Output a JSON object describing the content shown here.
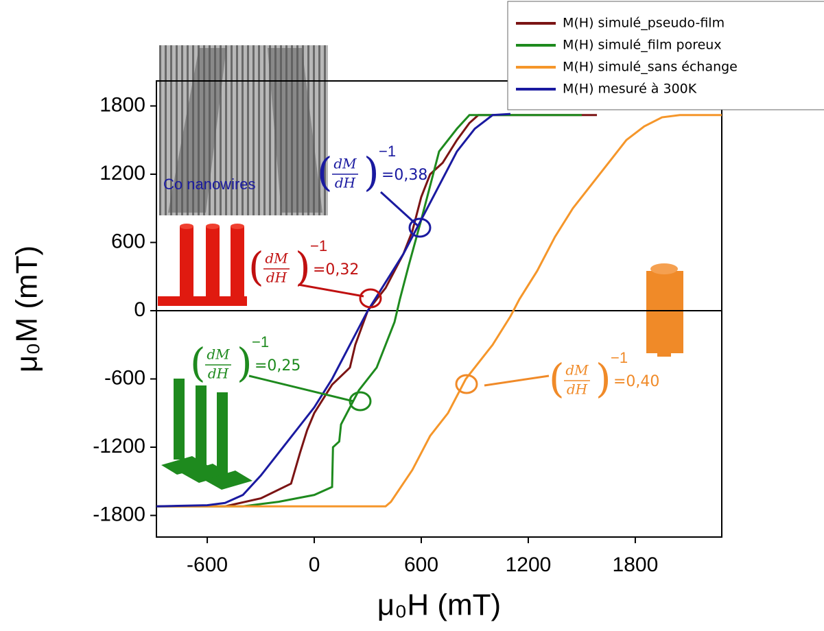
{
  "chart_data": {
    "type": "line",
    "xlabel": "μ₀H (mT)",
    "ylabel": "μ₀M (mT)",
    "xlim": [
      -885,
      2285
    ],
    "ylim": [
      -1990,
      2020
    ],
    "xticks": [
      -600,
      0,
      600,
      1200,
      1800
    ],
    "yticks": [
      -1800,
      -1200,
      -600,
      0,
      600,
      1200,
      1800
    ],
    "inset_caption": "Co nanowires",
    "series": [
      {
        "name": "M(H) simulé_pseudo-film",
        "color": "#7b1414",
        "x": [
          -885,
          -500,
          -300,
          -130,
          -80,
          -40,
          0,
          100,
          200,
          230,
          300,
          400,
          500,
          550,
          600,
          650,
          720,
          800,
          870,
          920,
          1585
        ],
        "values": [
          -1720,
          -1720,
          -1650,
          -1520,
          -1250,
          -1050,
          -900,
          -650,
          -500,
          -300,
          0,
          200,
          500,
          700,
          1000,
          1200,
          1300,
          1500,
          1650,
          1720,
          1720
        ]
      },
      {
        "name": "M(H) simulé_film poreux",
        "color": "#1e8a1e",
        "x": [
          -885,
          -400,
          -200,
          0,
          100,
          105,
          140,
          150,
          250,
          350,
          450,
          480,
          530,
          600,
          650,
          700,
          800,
          870,
          1500
        ],
        "values": [
          -1720,
          -1720,
          -1680,
          -1620,
          -1550,
          -1200,
          -1150,
          -1000,
          -700,
          -500,
          -100,
          100,
          400,
          800,
          1100,
          1400,
          1600,
          1720,
          1720
        ]
      },
      {
        "name": "M(H) simulé_sans échange",
        "color": "#f5962a",
        "x": [
          -885,
          400,
          430,
          550,
          650,
          750,
          850,
          1000,
          1100,
          1150,
          1250,
          1350,
          1450,
          1550,
          1650,
          1750,
          1850,
          1950,
          2050,
          2285
        ],
        "values": [
          -1720,
          -1720,
          -1680,
          -1400,
          -1100,
          -900,
          -600,
          -300,
          -50,
          100,
          350,
          650,
          900,
          1100,
          1300,
          1500,
          1620,
          1700,
          1720,
          1720
        ]
      },
      {
        "name": "M(H) mesuré à 300K",
        "color": "#1a1aa0",
        "x": [
          -885,
          -600,
          -500,
          -400,
          -300,
          -200,
          -100,
          0,
          100,
          200,
          300,
          400,
          500,
          600,
          700,
          800,
          900,
          1000,
          1100
        ],
        "values": [
          -1720,
          -1710,
          -1690,
          -1620,
          -1450,
          -1250,
          -1050,
          -850,
          -600,
          -300,
          0,
          250,
          500,
          800,
          1100,
          1400,
          1600,
          1720,
          1730
        ]
      }
    ],
    "annotations": [
      {
        "numerator": "dM",
        "denominator": "dH",
        "exponent": "−1",
        "text": "=0,38",
        "color": "#1a1aa0"
      },
      {
        "numerator": "dM",
        "denominator": "dH",
        "exponent": "−1",
        "text": "=0,32",
        "color": "#c01010"
      },
      {
        "numerator": "dM",
        "denominator": "dH",
        "exponent": "−1",
        "text": "=0,25",
        "color": "#1e8a1e"
      },
      {
        "numerator": "dM",
        "denominator": "dH",
        "exponent": "−1",
        "text": "=0,40",
        "color": "#f08a28"
      }
    ]
  }
}
